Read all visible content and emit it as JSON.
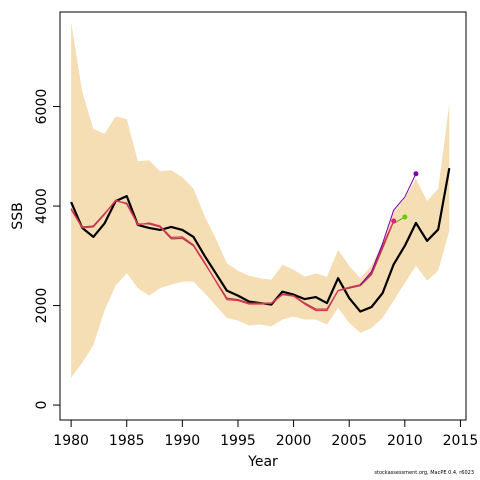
{
  "chart_data": {
    "type": "line",
    "xlabel": "Year",
    "ylabel": "SSB",
    "xlim": [
      1979.0,
      2015.5
    ],
    "ylim": [
      -300,
      7900
    ],
    "x_ticks": [
      1980,
      1985,
      1990,
      1995,
      2000,
      2005,
      2010,
      2015
    ],
    "y_ticks": [
      0,
      2000,
      4000,
      6000
    ],
    "grid": false,
    "legend": "none",
    "band": {
      "color": "#f5deb3",
      "x": [
        1980,
        1981,
        1982,
        1983,
        1984,
        1985,
        1986,
        1987,
        1988,
        1989,
        1990,
        1991,
        1992,
        1993,
        1994,
        1995,
        1996,
        1997,
        1998,
        1999,
        2000,
        2001,
        2002,
        2003,
        2004,
        2005,
        2006,
        2007,
        2008,
        2009,
        2010,
        2011,
        2012,
        2013,
        2014
      ],
      "lower": [
        550,
        850,
        1200,
        1900,
        2400,
        2650,
        2350,
        2200,
        2350,
        2420,
        2480,
        2480,
        2250,
        2000,
        1750,
        1700,
        1600,
        1620,
        1580,
        1720,
        1780,
        1720,
        1720,
        1620,
        1950,
        1650,
        1450,
        1550,
        1750,
        2100,
        2450,
        2800,
        2500,
        2700,
        3500
      ],
      "upper": [
        7700,
        6300,
        5550,
        5450,
        5800,
        5750,
        4900,
        4920,
        4700,
        4720,
        4580,
        4350,
        3800,
        3350,
        2850,
        2700,
        2600,
        2550,
        2520,
        2820,
        2720,
        2580,
        2650,
        2580,
        3120,
        2800,
        2550,
        2800,
        3250,
        3900,
        4150,
        4550,
        4100,
        4350,
        6050
      ]
    },
    "series": [
      {
        "color": "#000000",
        "x": [
          1980,
          1981,
          1982,
          1983,
          1984,
          1985,
          1986,
          1987,
          1988,
          1989,
          1990,
          1991,
          1992,
          1993,
          1994,
          1995,
          1996,
          1997,
          1998,
          1999,
          2000,
          2001,
          2002,
          2003,
          2004,
          2005,
          2006,
          2007,
          2008,
          2009,
          2010,
          2011,
          2012,
          2013,
          2014
        ],
        "values": [
          4080,
          3560,
          3380,
          3650,
          4100,
          4200,
          3620,
          3560,
          3520,
          3580,
          3520,
          3380,
          3000,
          2650,
          2300,
          2200,
          2080,
          2050,
          2020,
          2280,
          2220,
          2130,
          2170,
          2050,
          2550,
          2150,
          1880,
          1970,
          2250,
          2830,
          3200,
          3660,
          3300,
          3530,
          4760
        ],
        "width": 2.2
      },
      {
        "color": "#a0443c",
        "x": [
          1980,
          1981,
          1982,
          1983,
          1984,
          1985,
          1986,
          1987,
          1988,
          1989,
          1990,
          1991,
          1992,
          1993,
          1994,
          1995,
          1996,
          1997,
          1998,
          1999,
          2000,
          2001,
          2002,
          2003,
          2004,
          2005,
          2006,
          2007,
          2008,
          2009
        ],
        "values": [
          3950,
          3580,
          3600,
          3850,
          4100,
          4060,
          3640,
          3640,
          3580,
          3340,
          3350,
          3200,
          2850,
          2500,
          2150,
          2120,
          2050,
          2050,
          2050,
          2230,
          2200,
          2050,
          1930,
          1930,
          2300,
          2350,
          2400,
          2620,
          3150,
          3700
        ],
        "width": 1.2
      },
      {
        "color": "#e0305a",
        "x": [
          1980,
          1981,
          1982,
          1983,
          1984,
          1985,
          1986,
          1987,
          1988,
          1989,
          1990,
          1991,
          1992,
          1993,
          1994,
          1995,
          1996,
          1997,
          1998,
          1999,
          2000,
          2001,
          2002,
          2003,
          2004,
          2005,
          2006,
          2007,
          2008,
          2009
        ],
        "values": [
          3930,
          3560,
          3580,
          3830,
          4120,
          4040,
          3620,
          3660,
          3600,
          3370,
          3380,
          3220,
          2870,
          2490,
          2120,
          2100,
          2030,
          2030,
          2040,
          2220,
          2190,
          2030,
          1900,
          1900,
          2300,
          2370,
          2420,
          2650,
          3200,
          3700
        ],
        "width": 1.2
      },
      {
        "color": "#7a00a8",
        "x": [
          2006,
          2007,
          2008,
          2009,
          2010,
          2011
        ],
        "values": [
          2420,
          2680,
          3250,
          3920,
          4180,
          4650
        ],
        "width": 1.0
      },
      {
        "color": "#55aa00",
        "x": [
          2009,
          2010
        ],
        "values": [
          3650,
          3780
        ],
        "width": 1.0
      }
    ],
    "points": [
      {
        "x": 2009,
        "y": 3700,
        "color": "#e0207a"
      },
      {
        "x": 2010,
        "y": 3780,
        "color": "#66cc00"
      },
      {
        "x": 2011,
        "y": 4650,
        "color": "#7a00a8"
      }
    ]
  },
  "credit": "stockassessment.org, MacPE 0.4, r6023"
}
